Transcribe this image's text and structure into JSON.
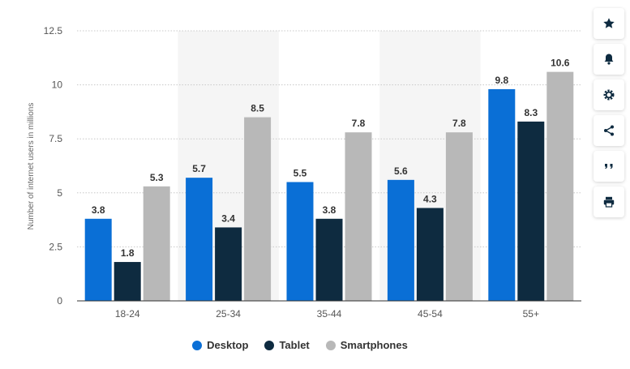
{
  "chart_data": {
    "type": "bar",
    "categories": [
      "18-24",
      "25-34",
      "35-44",
      "45-54",
      "55+"
    ],
    "series": [
      {
        "name": "Desktop",
        "color": "#0a6fd6",
        "values": [
          3.8,
          5.7,
          5.5,
          5.6,
          9.8
        ]
      },
      {
        "name": "Tablet",
        "color": "#0e2b40",
        "values": [
          1.8,
          3.4,
          3.8,
          4.3,
          8.3
        ]
      },
      {
        "name": "Smartphones",
        "color": "#b8b8b8",
        "values": [
          5.3,
          8.5,
          7.8,
          7.8,
          10.6
        ]
      }
    ],
    "ylabel": "Number of internet users in millions",
    "yticks": [
      "0",
      "2.5",
      "5",
      "7.5",
      "10",
      "12.5"
    ],
    "ylim": [
      0,
      12.5
    ],
    "legend_position": "bottom",
    "grid": true
  },
  "toolbar": {
    "icons": [
      "star-icon",
      "bell-icon",
      "gear-icon",
      "share-icon",
      "quote-icon",
      "print-icon"
    ]
  }
}
